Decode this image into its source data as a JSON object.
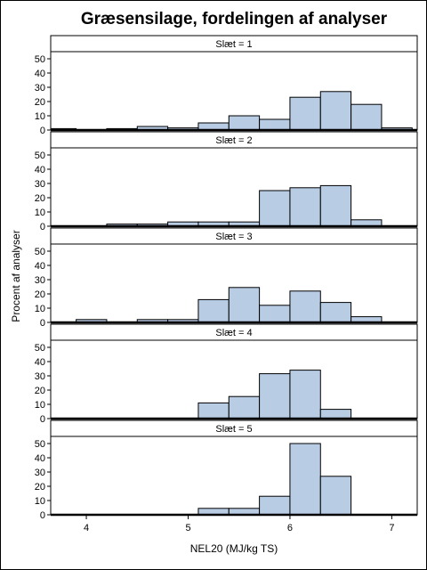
{
  "chart_data": {
    "type": "bar",
    "title": "Græsensilage, fordelingen af analyser",
    "xlabel": "NEL20 (MJ/kg TS)",
    "ylabel": "Procent af analyser",
    "xlim": [
      3.65,
      7.25
    ],
    "ylim": [
      0,
      55
    ],
    "xticks": [
      4,
      5,
      6,
      7
    ],
    "yticks": [
      0,
      10,
      20,
      30,
      40,
      50
    ],
    "bin_edges": [
      3.6,
      3.9,
      4.2,
      4.5,
      4.8,
      5.1,
      5.4,
      5.7,
      6.0,
      6.3,
      6.6,
      6.9,
      7.2
    ],
    "bar_color": "#b8cce4",
    "panels": [
      {
        "label": "Slæt = 1",
        "values": [
          1,
          0,
          1,
          2.5,
          1.5,
          5,
          10,
          7.5,
          23,
          27,
          18,
          1.5
        ]
      },
      {
        "label": "Slæt = 2",
        "values": [
          0,
          0,
          1.5,
          1.5,
          3,
          3,
          3,
          25,
          27,
          28.5,
          4.5,
          0
        ]
      },
      {
        "label": "Slæt = 3",
        "values": [
          0,
          2,
          0,
          2,
          2,
          16,
          24.5,
          12,
          22,
          14,
          4,
          0
        ]
      },
      {
        "label": "Slæt = 4",
        "values": [
          0,
          0,
          0,
          0,
          0,
          11,
          15.5,
          31.5,
          34,
          6.5,
          0,
          0
        ]
      },
      {
        "label": "Slæt = 5",
        "values": [
          0,
          0,
          0,
          0,
          0,
          4.5,
          4.5,
          13,
          50,
          27,
          0,
          0
        ]
      }
    ]
  }
}
